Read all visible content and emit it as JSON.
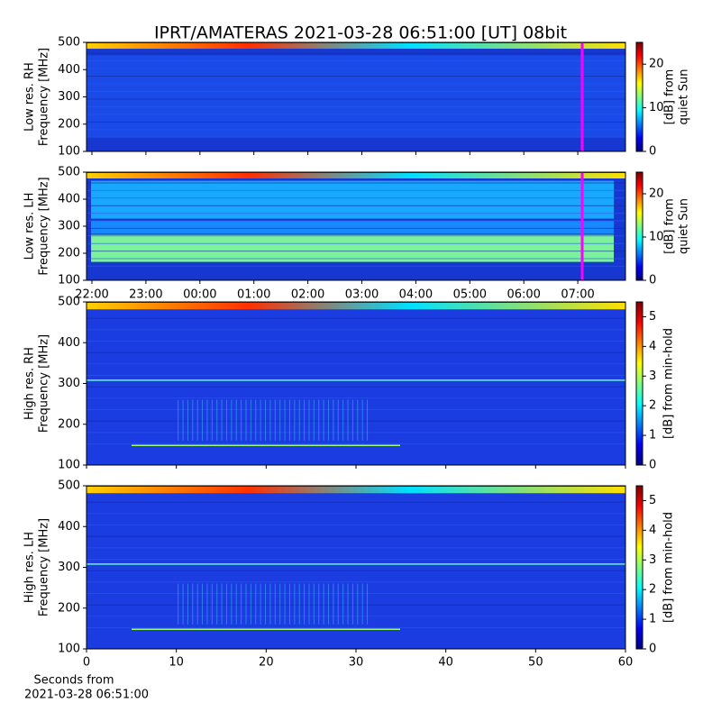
{
  "title": "IPRT/AMATERAS 2021-03-28 06:51:00 [UT]   08bit",
  "xlabel": [
    "Seconds from",
    "2021-03-28 06:51:00"
  ],
  "chart_data": [
    {
      "type": "heatmap",
      "ylabel": [
        "Low res. RH",
        "Frequency [MHz]"
      ],
      "ylim": [
        100,
        500
      ],
      "yticks": [
        100,
        200,
        300,
        400,
        500
      ],
      "colorbar_label": [
        "[dB] from",
        "quiet Sun"
      ],
      "clim": [
        0,
        25
      ],
      "cticks": [
        0,
        10,
        20
      ],
      "colormap": "jet"
    },
    {
      "type": "heatmap",
      "ylabel": [
        "Low res. LH",
        "Frequency [MHz]"
      ],
      "ylim": [
        100,
        500
      ],
      "yticks": [
        100,
        200,
        300,
        400,
        500
      ],
      "xticks": [
        "22:00",
        "23:00",
        "00:00",
        "01:00",
        "02:00",
        "03:00",
        "04:00",
        "05:00",
        "06:00",
        "07:00"
      ],
      "colorbar_label": [
        "[dB] from",
        "quiet Sun"
      ],
      "clim": [
        0,
        25
      ],
      "cticks": [
        0,
        10,
        20
      ],
      "colormap": "jet"
    },
    {
      "type": "heatmap",
      "ylabel": [
        "High res. RH",
        "Frequency [MHz]"
      ],
      "ylim": [
        100,
        500
      ],
      "yticks": [
        100,
        200,
        300,
        400,
        500
      ],
      "colorbar_label": [
        "[dB] from min-hold"
      ],
      "clim": [
        0,
        5.5
      ],
      "cticks": [
        0,
        1,
        2,
        3,
        4,
        5
      ],
      "colormap": "jet"
    },
    {
      "type": "heatmap",
      "ylabel": [
        "High res. LH",
        "Frequency [MHz]"
      ],
      "ylim": [
        100,
        500
      ],
      "yticks": [
        100,
        200,
        300,
        400,
        500
      ],
      "xlim": [
        0,
        60
      ],
      "xticks": [
        0,
        10,
        20,
        30,
        40,
        50,
        60
      ],
      "colorbar_label": [
        "[dB] from min-hold"
      ],
      "clim": [
        0,
        5.5
      ],
      "cticks": [
        0,
        1,
        2,
        3,
        4,
        5
      ],
      "colormap": "jet"
    }
  ]
}
